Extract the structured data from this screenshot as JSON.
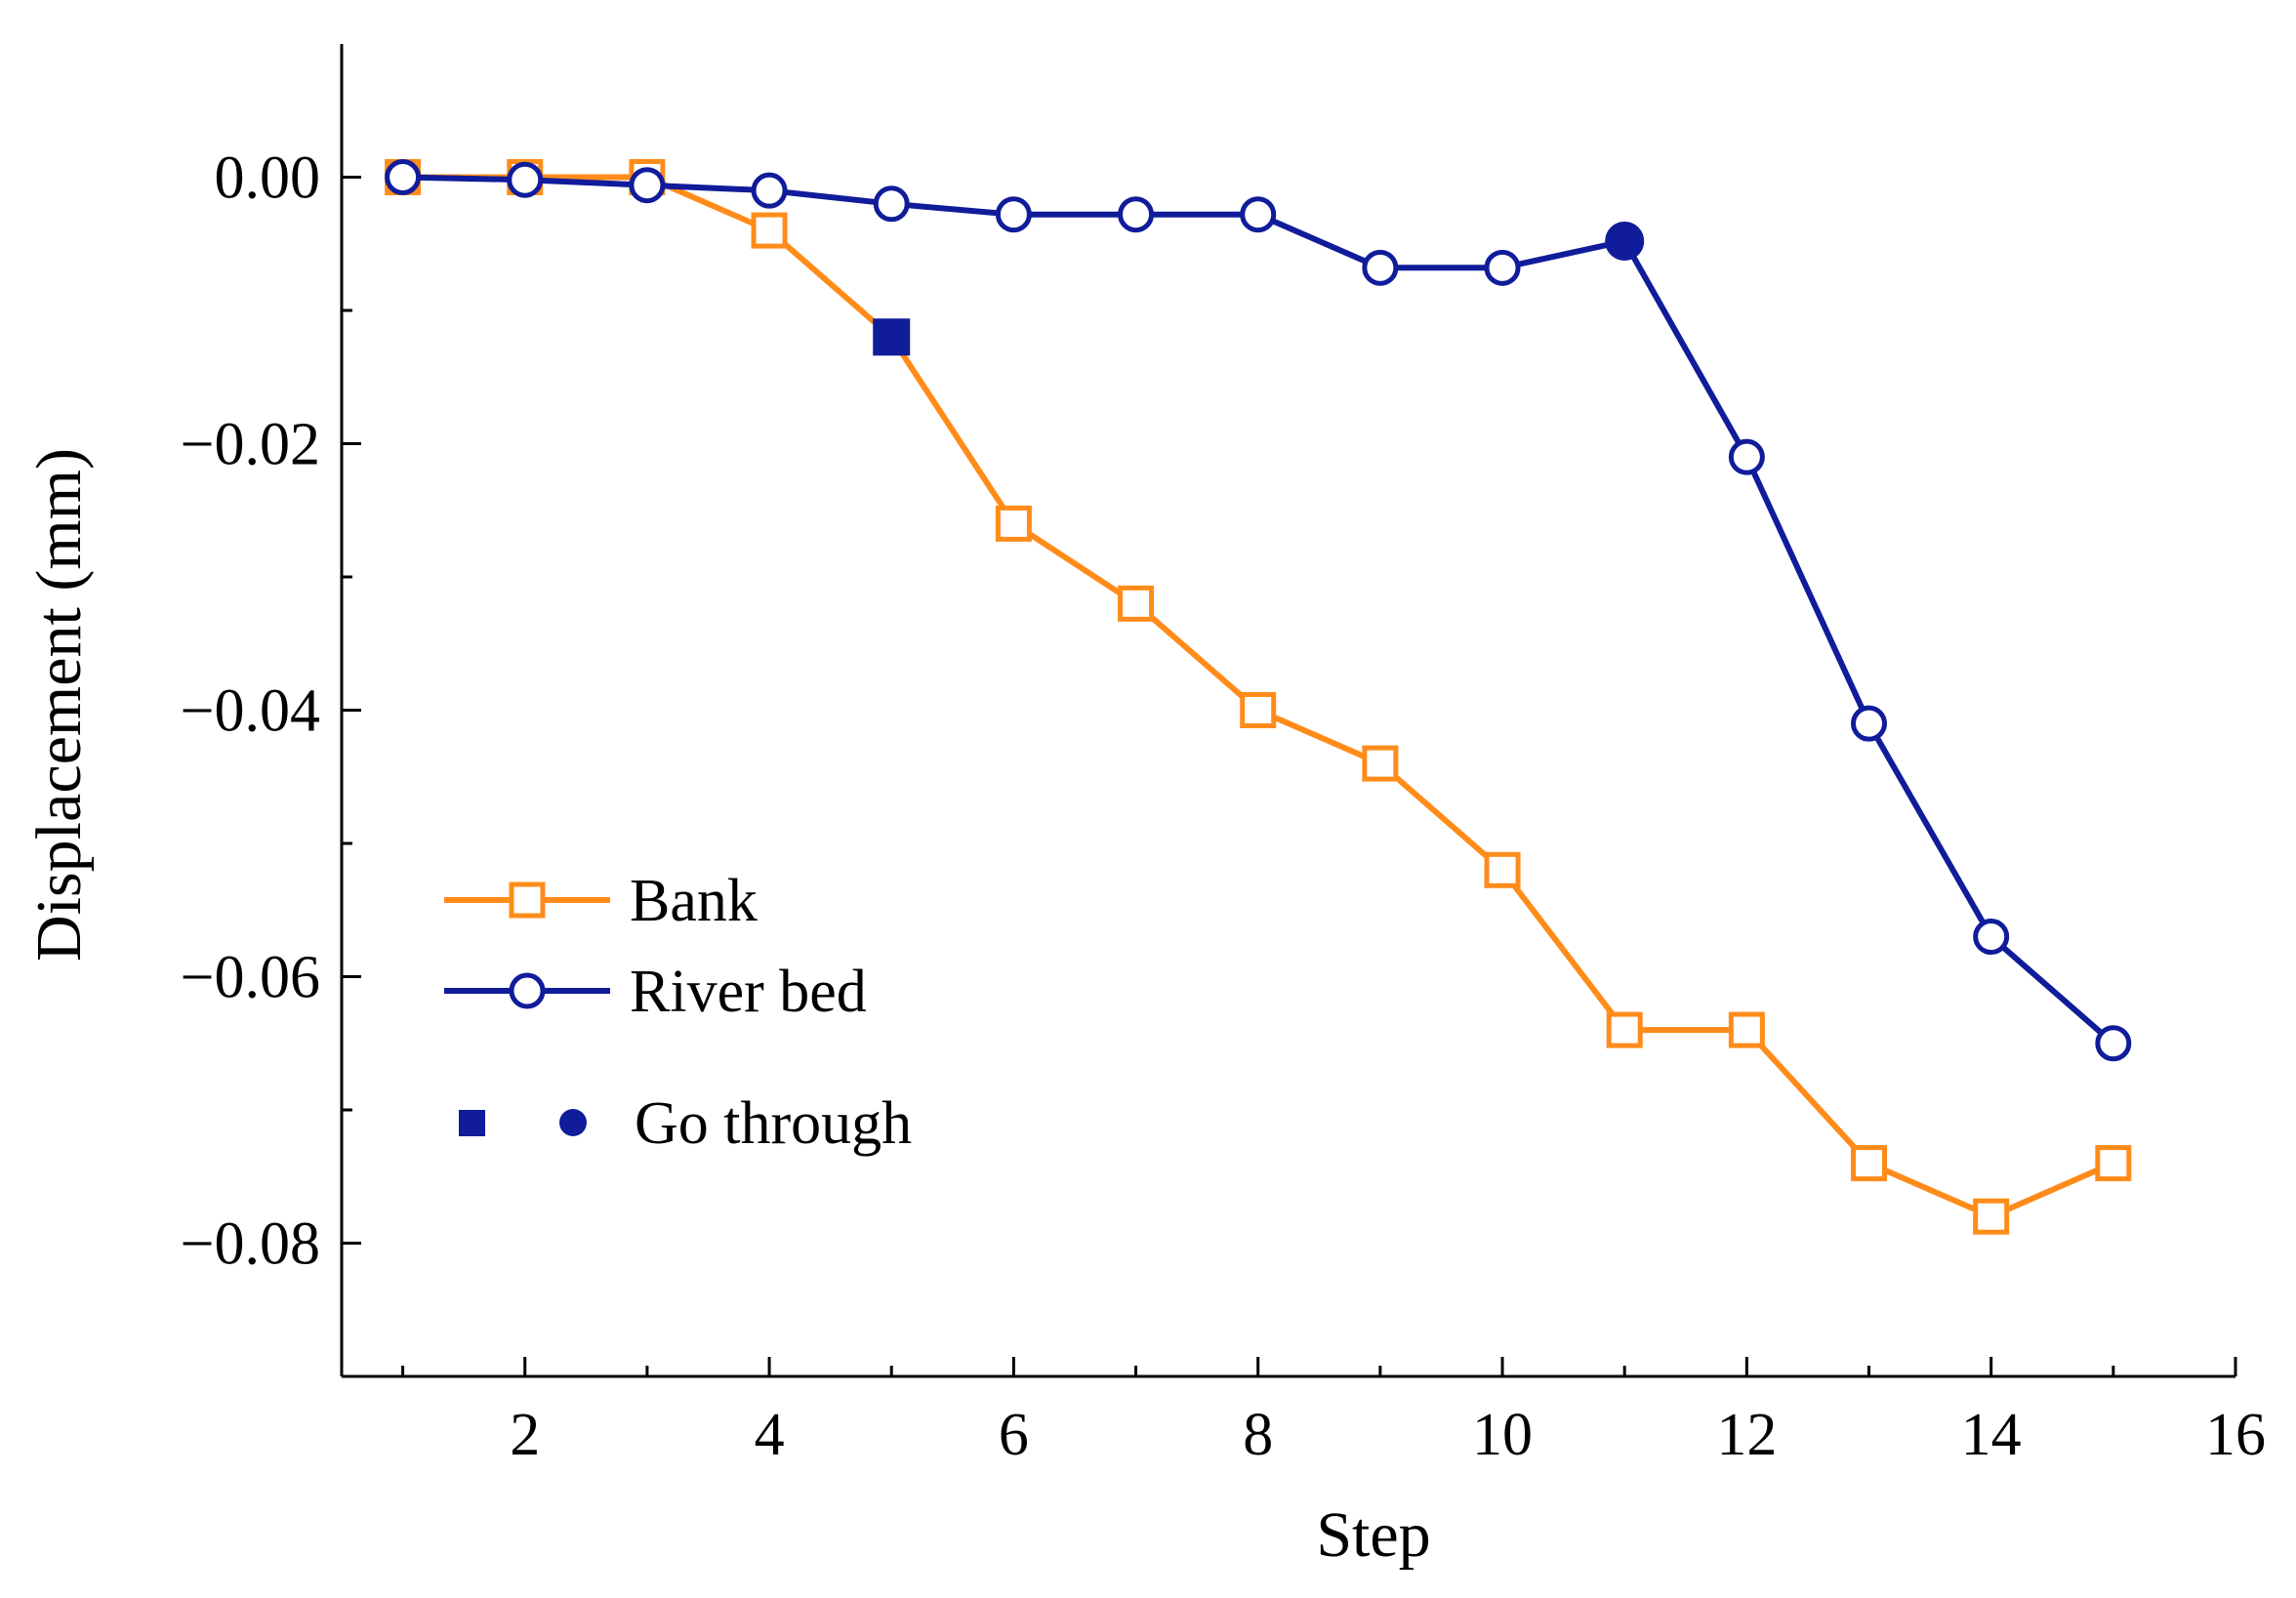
{
  "chart_data": {
    "type": "line",
    "xlabel": "Step",
    "ylabel": "Displacement (mm)",
    "xlim": [
      0.5,
      16
    ],
    "ylim": [
      -0.09,
      0.01
    ],
    "x_ticks": [
      2,
      4,
      6,
      8,
      10,
      12,
      14,
      16
    ],
    "x_tick_labels": [
      "2",
      "4",
      "6",
      "8",
      "10",
      "12",
      "14",
      "16"
    ],
    "x_minor_ticks": [
      1,
      3,
      5,
      7,
      9,
      11,
      13,
      15
    ],
    "y_ticks": [
      0.0,
      -0.02,
      -0.04,
      -0.06,
      -0.08
    ],
    "y_tick_labels": [
      "0.00",
      "−0.02",
      "−0.04",
      "−0.06",
      "−0.08"
    ],
    "y_minor_ticks": [
      -0.01,
      -0.03,
      -0.05,
      -0.07
    ],
    "grid": false,
    "legend_position": "lower-left",
    "series": [
      {
        "name": "Bank",
        "color": "#FF8C1A",
        "marker": "open-square",
        "x": [
          1,
          2,
          3,
          4,
          5,
          6,
          7,
          8,
          9,
          10,
          11,
          12,
          13,
          14,
          15
        ],
        "values": [
          0.0,
          0.0,
          0.0,
          -0.004,
          -0.012,
          -0.026,
          -0.032,
          -0.04,
          -0.044,
          -0.052,
          -0.064,
          -0.064,
          -0.074,
          -0.078,
          -0.074
        ]
      },
      {
        "name": "River bed",
        "color": "#101C9A",
        "marker": "open-circle",
        "x": [
          1,
          2,
          3,
          4,
          5,
          6,
          7,
          8,
          9,
          10,
          11,
          12,
          13,
          14,
          15
        ],
        "values": [
          0.0,
          -0.0002,
          -0.0006,
          -0.001,
          -0.002,
          -0.0028,
          -0.0028,
          -0.0028,
          -0.0068,
          -0.0068,
          -0.0048,
          -0.021,
          -0.041,
          -0.057,
          -0.065
        ]
      }
    ],
    "highlights": [
      {
        "series": "Bank",
        "x": 5,
        "y": -0.012,
        "marker": "filled-square",
        "color": "#101C9A"
      },
      {
        "series": "River bed",
        "x": 11,
        "y": -0.0048,
        "marker": "filled-circle",
        "color": "#101C9A"
      }
    ],
    "legend_extra": {
      "label": "Go through",
      "color": "#101C9A"
    }
  }
}
